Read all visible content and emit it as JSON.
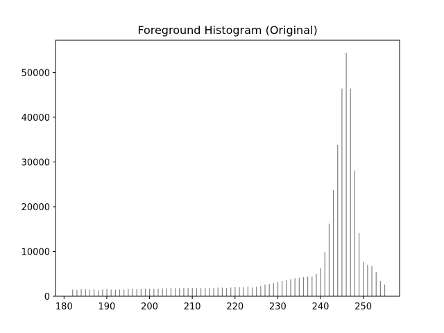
{
  "chart_data": {
    "type": "bar",
    "title": "Foreground Histogram (Original)",
    "xlabel": "",
    "ylabel": "",
    "xlim": [
      178,
      258.5
    ],
    "ylim": [
      0,
      57200
    ],
    "xticks": [
      180,
      190,
      200,
      210,
      220,
      230,
      240,
      250
    ],
    "yticks": [
      0,
      10000,
      20000,
      30000,
      40000,
      50000
    ],
    "grid": false,
    "bar_color": "#808080",
    "x": [
      182,
      183,
      184,
      185,
      186,
      187,
      188,
      189,
      190,
      191,
      192,
      193,
      194,
      195,
      196,
      197,
      198,
      199,
      200,
      201,
      202,
      203,
      204,
      205,
      206,
      207,
      208,
      209,
      210,
      211,
      212,
      213,
      214,
      215,
      216,
      217,
      218,
      219,
      220,
      221,
      222,
      223,
      224,
      225,
      226,
      227,
      228,
      229,
      230,
      231,
      232,
      233,
      234,
      235,
      236,
      237,
      238,
      239,
      240,
      241,
      242,
      243,
      244,
      245,
      246,
      247,
      248,
      249,
      250,
      251,
      252,
      253,
      254,
      255
    ],
    "values": [
      1500,
      1400,
      1550,
      1550,
      1500,
      1550,
      1350,
      1500,
      1600,
      1500,
      1450,
      1500,
      1500,
      1600,
      1650,
      1600,
      1650,
      1650,
      1650,
      1650,
      1700,
      1750,
      1800,
      1850,
      1800,
      1800,
      1850,
      1850,
      1850,
      1800,
      1800,
      1850,
      1850,
      1900,
      1950,
      1900,
      1850,
      1950,
      2000,
      2000,
      2050,
      2150,
      1950,
      2100,
      2300,
      2600,
      2750,
      2900,
      3200,
      3400,
      3600,
      3800,
      4000,
      4150,
      4300,
      4400,
      4400,
      5000,
      6300,
      9900,
      16200,
      23700,
      33800,
      46400,
      54400,
      46400,
      28100,
      14100,
      7700,
      7000,
      6800,
      5400,
      3400,
      2600
    ]
  }
}
